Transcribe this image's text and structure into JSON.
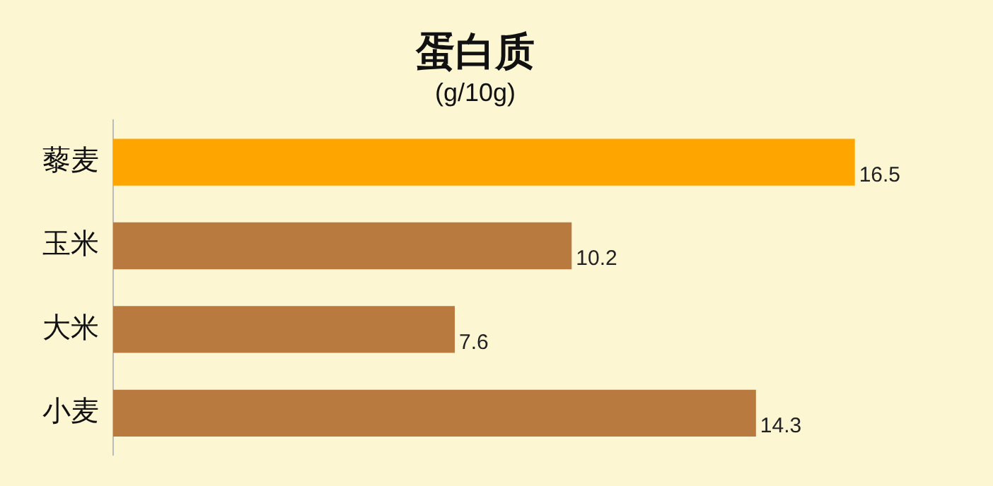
{
  "chart_data": {
    "type": "bar",
    "orientation": "horizontal",
    "title": "蛋白质",
    "subtitle": "(g/10g)",
    "categories": [
      "藜麦",
      "玉米",
      "大米",
      "小麦"
    ],
    "values": [
      16.5,
      10.2,
      7.6,
      14.3
    ],
    "colors": [
      "#ffa500",
      "#b87a3f",
      "#b87a3f",
      "#b87a3f"
    ],
    "data_labels": true
  }
}
